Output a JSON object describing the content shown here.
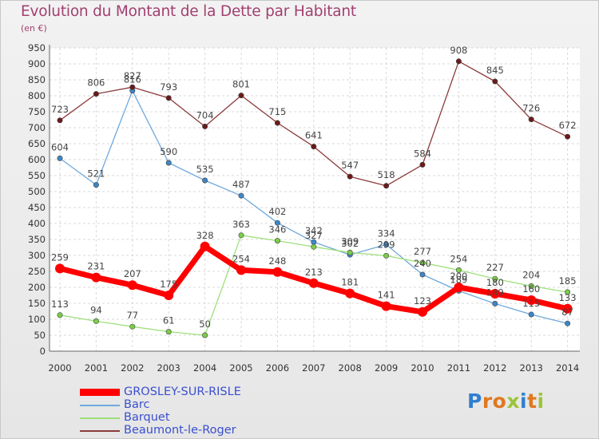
{
  "title": "Evolution du Montant de la Dette par Habitant",
  "subtitle": "(en €)",
  "brand": {
    "letters": [
      {
        "ch": "P",
        "color": "#2f7fd0"
      },
      {
        "ch": "r",
        "color": "#e07820"
      },
      {
        "ch": "o",
        "color": "#e07820"
      },
      {
        "ch": "x",
        "color": "#9ac43a"
      },
      {
        "ch": "i",
        "color": "#2f7fd0"
      },
      {
        "ch": "t",
        "color": "#e07820"
      },
      {
        "ch": "i",
        "color": "#9ac43a"
      }
    ]
  },
  "chart_data": {
    "type": "line",
    "title": "Evolution du Montant de la Dette par Habitant",
    "subtitle": "(en €)",
    "x": [
      "2000",
      "2001",
      "2002",
      "2003",
      "2004",
      "2005",
      "2006",
      "2007",
      "2008",
      "2009",
      "2010",
      "2011",
      "2012",
      "2013",
      "2014"
    ],
    "ylim": [
      0,
      950
    ],
    "yticks": [
      0,
      50,
      100,
      150,
      200,
      250,
      300,
      350,
      400,
      450,
      500,
      550,
      600,
      650,
      700,
      750,
      800,
      850,
      900,
      950
    ],
    "grid": true,
    "legend_position": "bottom-left",
    "series": [
      {
        "name": "GROSLEY-SUR-RISLE",
        "color": "#ff0000",
        "marker": "#ff0000",
        "emphasis": true,
        "values": [
          259,
          231,
          207,
          175,
          328,
          254,
          248,
          213,
          181,
          141,
          123,
          200,
          180,
          160,
          133
        ]
      },
      {
        "name": "Barc",
        "color": "#6fa8dc",
        "marker": "#3d86c6",
        "emphasis": false,
        "values": [
          604,
          521,
          816,
          590,
          535,
          487,
          402,
          342,
          302,
          334,
          240,
          189,
          149,
          115,
          87
        ]
      },
      {
        "name": "Barquet",
        "color": "#9ee07a",
        "marker": "#7ccc4a",
        "emphasis": false,
        "values": [
          113,
          94,
          77,
          61,
          50,
          363,
          346,
          327,
          309,
          299,
          277,
          254,
          227,
          204,
          185
        ]
      },
      {
        "name": "Beaumont-le-Roger",
        "color": "#8b3a3a",
        "marker": "#6b1a1a",
        "emphasis": false,
        "values": [
          723,
          806,
          827,
          793,
          704,
          801,
          715,
          641,
          547,
          518,
          584,
          908,
          845,
          726,
          672
        ]
      }
    ]
  }
}
